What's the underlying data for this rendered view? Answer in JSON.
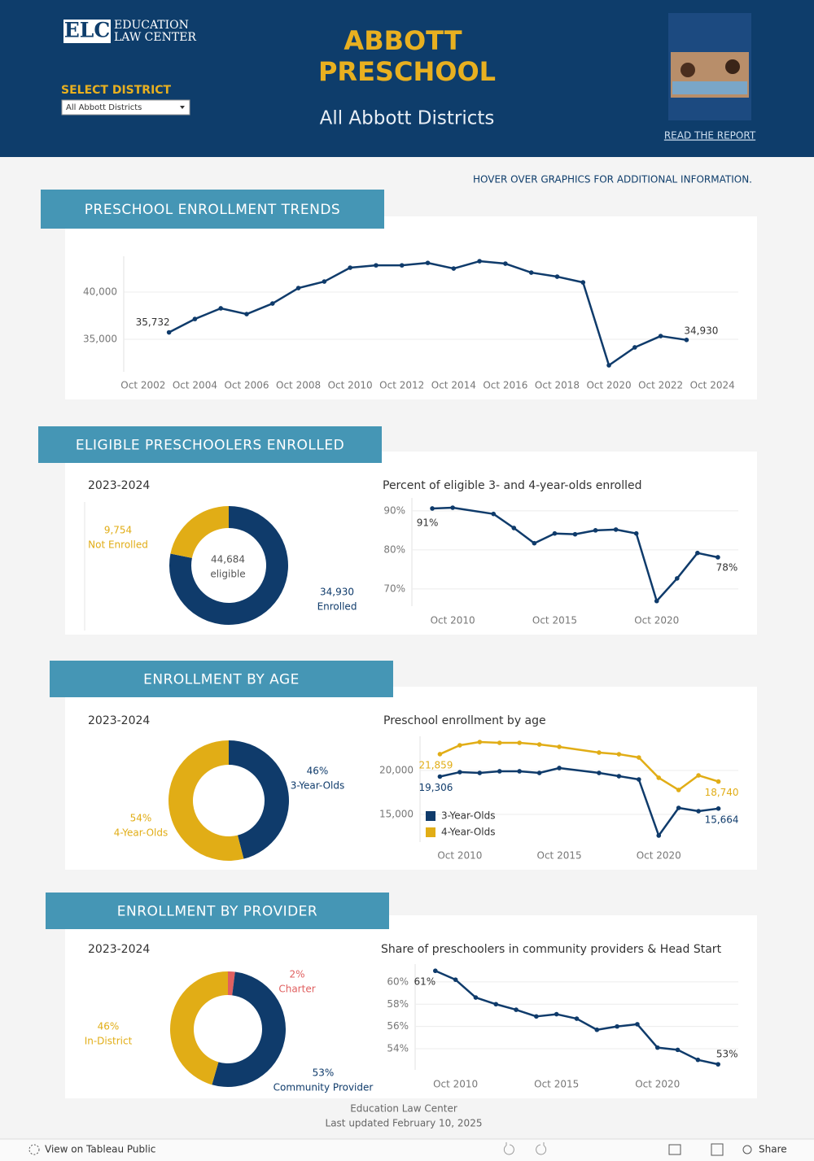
{
  "header": {
    "logo_abbr": "ELC",
    "logo_lines": [
      "EDUCATION",
      "LAW CENTER"
    ],
    "select_label": "SELECT DISTRICT",
    "dropdown": "All Abbott Districts",
    "title_lines": [
      "ABBOTT",
      "PRESCHOOL"
    ],
    "subtitle": "All Abbott Districts",
    "report_link": "READ THE REPORT"
  },
  "hover_note": "HOVER OVER GRAPHICS FOR ADDITIONAL INFORMATION.",
  "sections": [
    "PRESCHOOL ENROLLMENT TRENDS",
    "ELIGIBLE PRESCHOOLERS ENROLLED",
    "ENROLLMENT BY AGE",
    "ENROLLMENT BY PROVIDER"
  ],
  "chart_data": [
    {
      "type": "line",
      "color": "#0f3b6b",
      "x": [
        "Oct 2003",
        "Oct 2004",
        "Oct 2005",
        "Oct 2006",
        "Oct 2007",
        "Oct 2008",
        "Oct 2009",
        "Oct 2010",
        "Oct 2011",
        "Oct 2012",
        "Oct 2013",
        "Oct 2014",
        "Oct 2015",
        "Oct 2016",
        "Oct 2017",
        "Oct 2018",
        "Oct 2019",
        "Oct 2020",
        "Oct 2021",
        "Oct 2022",
        "Oct 2023"
      ],
      "values": [
        35732,
        37150,
        38280,
        37670,
        38790,
        40430,
        41120,
        42590,
        42840,
        42840,
        43100,
        42500,
        43280,
        43020,
        42070,
        41640,
        41030,
        32240,
        34140,
        35340,
        34930
      ],
      "value_labels": [
        "35,732",
        null,
        null,
        null,
        null,
        null,
        null,
        null,
        null,
        null,
        null,
        null,
        null,
        null,
        null,
        null,
        null,
        null,
        null,
        null,
        "34,930"
      ],
      "xlim": [
        "Jan 2002",
        "Oct 2025"
      ],
      "xticks": [
        "Oct 2002",
        "Oct 2004",
        "Oct 2006",
        "Oct 2008",
        "Oct 2010",
        "Oct 2012",
        "Oct 2014",
        "Oct 2016",
        "Oct 2018",
        "Oct 2020",
        "Oct 2022",
        "Oct 2024"
      ],
      "ylim": [
        31550,
        43800
      ],
      "yticks": [
        {
          "value": 35000,
          "label": "35,000"
        },
        {
          "value": 40000,
          "label": "40,000"
        }
      ],
      "grid": true
    },
    {
      "type": "donut",
      "title": "2023-2024",
      "categories": [
        "Enrolled",
        "Not Enrolled"
      ],
      "values": [
        34930,
        9754
      ],
      "value_labels": [
        "34,930",
        "9,754"
      ],
      "colors": [
        "#0f3b6b",
        "#e1ad16"
      ],
      "center_lines": [
        "44,684",
        "eligible"
      ]
    },
    {
      "type": "line",
      "title": "Percent of eligible 3- and 4-year-olds enrolled",
      "color": "#0f3b6b",
      "x": [
        "Oct 2009",
        "Oct 2010",
        "Oct 2012",
        "Oct 2013",
        "Oct 2014",
        "Oct 2015",
        "Oct 2016",
        "Oct 2017",
        "Oct 2018",
        "Oct 2019",
        "Oct 2020",
        "Oct 2021",
        "Oct 2022",
        "Oct 2023"
      ],
      "values": [
        90.6,
        90.8,
        89.2,
        85.6,
        81.7,
        84.2,
        84.0,
        85.0,
        85.2,
        84.2,
        66.9,
        72.7,
        79.2,
        78.1
      ],
      "value_labels": [
        "91%",
        null,
        null,
        null,
        null,
        null,
        null,
        null,
        null,
        null,
        null,
        null,
        null,
        "78%"
      ],
      "xlim": [
        "Oct 2008",
        "Oct 2024"
      ],
      "xticks": [
        "Oct 2010",
        "Oct 2015",
        "Oct 2020"
      ],
      "ylim": [
        65.6,
        93.3
      ],
      "yticks": [
        {
          "value": 70,
          "label": "70%"
        },
        {
          "value": 80,
          "label": "80%"
        },
        {
          "value": 90,
          "label": "90%"
        }
      ],
      "grid": true
    },
    {
      "type": "donut",
      "title": "2023-2024",
      "categories": [
        "3-Year-Olds",
        "4-Year-Olds"
      ],
      "values": [
        46,
        54
      ],
      "value_labels": [
        "46%",
        "54%"
      ],
      "colors": [
        "#0f3b6b",
        "#e1ad16"
      ]
    },
    {
      "type": "line",
      "title": "Preschool enrollment by age",
      "legend": "lower left",
      "x": [
        "Oct 2009",
        "Oct 2010",
        "Oct 2011",
        "Oct 2012",
        "Oct 2013",
        "Oct 2014",
        "Oct 2015",
        "Oct 2017",
        "Oct 2018",
        "Oct 2019",
        "Oct 2020",
        "Oct 2021",
        "Oct 2022",
        "Oct 2023"
      ],
      "series": [
        {
          "name": "3-Year-Olds",
          "color": "#0f3b6b",
          "values": [
            19306,
            19810,
            19720,
            19910,
            19910,
            19720,
            20280,
            19720,
            19350,
            18980,
            12590,
            15740,
            15370,
            15664
          ],
          "value_labels": [
            "19,306",
            null,
            null,
            null,
            null,
            null,
            null,
            null,
            null,
            null,
            null,
            null,
            null,
            "15,664"
          ]
        },
        {
          "name": "4-Year-Olds",
          "color": "#e1ad16",
          "values": [
            21859,
            22870,
            23240,
            23150,
            23150,
            22960,
            22690,
            22040,
            21850,
            21480,
            19170,
            17780,
            19440,
            18740
          ],
          "value_labels": [
            "21,859",
            null,
            null,
            null,
            null,
            null,
            null,
            null,
            null,
            null,
            null,
            null,
            null,
            "18,740"
          ]
        }
      ],
      "xlim": [
        "Oct 2008",
        "Oct 2024"
      ],
      "xticks": [
        "Oct 2010",
        "Oct 2015",
        "Oct 2020"
      ],
      "ylim": [
        11850,
        23890
      ],
      "yticks": [
        {
          "value": 15000,
          "label": "15,000"
        },
        {
          "value": 20000,
          "label": "20,000"
        }
      ],
      "grid": true
    },
    {
      "type": "donut",
      "title": "2023-2024",
      "categories": [
        "Charter",
        "Community Provider",
        "In-District"
      ],
      "values": [
        2,
        53,
        46
      ],
      "value_labels": [
        "2%",
        "53%",
        "46%"
      ],
      "colors": [
        "#e06060",
        "#0f3b6b",
        "#e1ad16"
      ]
    },
    {
      "type": "line",
      "title": "Share of preschoolers in community providers & Head Start",
      "color": "#0f3b6b",
      "x": [
        "Oct 2009",
        "Oct 2010",
        "Oct 2011",
        "Oct 2012",
        "Oct 2013",
        "Oct 2014",
        "Oct 2015",
        "Oct 2016",
        "Oct 2017",
        "Oct 2018",
        "Oct 2019",
        "Oct 2020",
        "Oct 2021",
        "Oct 2022",
        "Oct 2023"
      ],
      "values": [
        61.0,
        60.2,
        58.6,
        58.0,
        57.5,
        56.9,
        57.1,
        56.7,
        55.7,
        56.0,
        56.2,
        54.1,
        53.9,
        53.0,
        52.6
      ],
      "value_labels": [
        "61%",
        null,
        null,
        null,
        null,
        null,
        null,
        null,
        null,
        null,
        null,
        null,
        null,
        null,
        "53%"
      ],
      "xlim": [
        "Oct 2008",
        "Oct 2024"
      ],
      "xticks": [
        "Oct 2010",
        "Oct 2015",
        "Oct 2020"
      ],
      "ylim": [
        52.1,
        61.6
      ],
      "yticks": [
        {
          "value": 54,
          "label": "54%"
        },
        {
          "value": 56,
          "label": "56%"
        },
        {
          "value": 58,
          "label": "58%"
        },
        {
          "value": 60,
          "label": "60%"
        }
      ],
      "grid": true
    }
  ],
  "footer": {
    "source": "Education Law Center",
    "updated": "Last updated February 10, 2025"
  },
  "toolbar": {
    "view": "View on Tableau Public",
    "share": "Share"
  }
}
